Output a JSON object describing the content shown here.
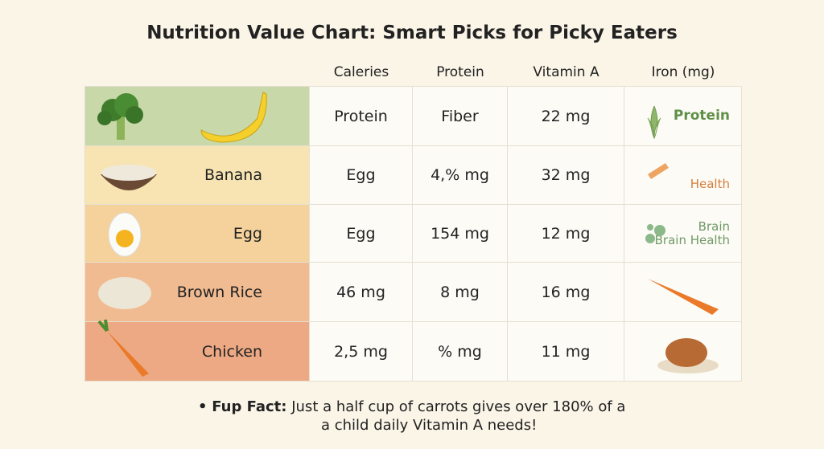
{
  "title": "Nutrition Value Chart: Smart Picks for Picky Eaters",
  "table": {
    "headers": [
      "Caleries",
      "Protein",
      "Vitamin A",
      "Iron (mg)"
    ],
    "rows": [
      {
        "cells": [
          "Protein",
          "Fiber",
          "22 mg"
        ],
        "iron": [
          "Protein"
        ]
      },
      {
        "label": "Banana",
        "cells": [
          "Egg",
          "4,% mg",
          "32 mg"
        ],
        "iron": [
          "Health"
        ]
      },
      {
        "label": "Egg",
        "cells": [
          "Egg",
          "154 mg",
          "12 mg"
        ],
        "iron": [
          "Brain",
          "Brain Health"
        ]
      },
      {
        "label": "Brown Rice",
        "cells": [
          "46 mg",
          "8 mg",
          "16 mg"
        ]
      },
      {
        "label": "Chicken",
        "cells": [
          "2,5 mg",
          "% mg",
          "11 mg"
        ]
      }
    ]
  },
  "footer": {
    "bullet": "•",
    "lead": "Fup Fact:",
    "lines": [
      "Just a half cup of carrots gives over 180% of a",
      "a child daily Vitamin A needs!"
    ]
  }
}
